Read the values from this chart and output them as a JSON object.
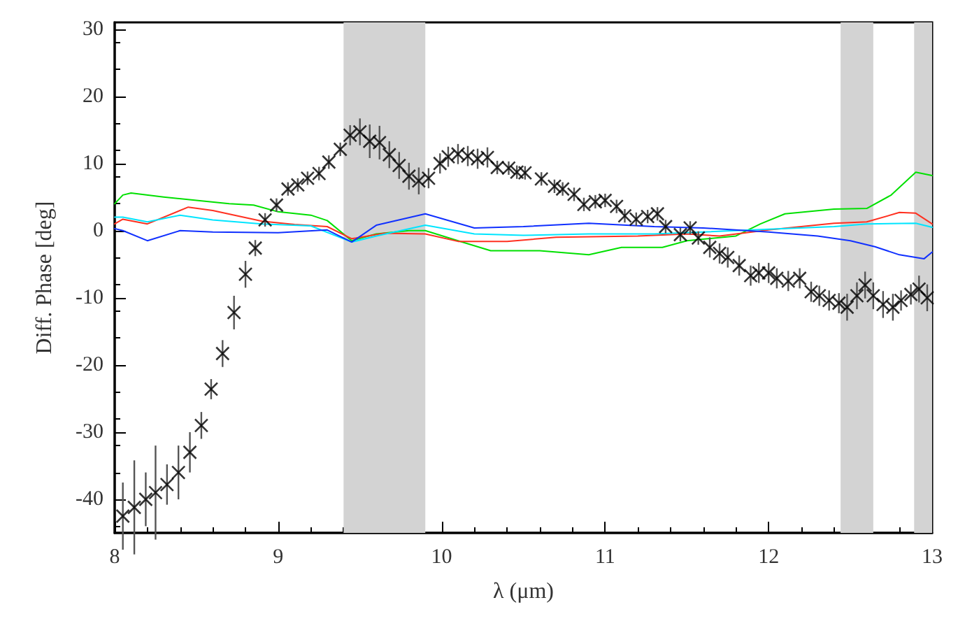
{
  "chart_data": {
    "type": "scatter",
    "xlabel": "λ (μm)",
    "ylabel": "Diff. Phase [deg]",
    "xlim": [
      8,
      13
    ],
    "ylim": [
      -45,
      31
    ],
    "xticks": [
      8,
      9,
      10,
      11,
      12,
      13
    ],
    "yticks": [
      -40,
      -30,
      -20,
      -10,
      0,
      10,
      20,
      30
    ],
    "grid": false,
    "bands": [
      {
        "axis": "x",
        "from": 9.4,
        "to": 9.9,
        "color": "#d3d3d3"
      },
      {
        "axis": "x",
        "from": 12.44,
        "to": 12.64,
        "color": "#d3d3d3"
      },
      {
        "axis": "x",
        "from": 12.89,
        "to": 13,
        "color": "#d3d3d3"
      }
    ],
    "series": [
      {
        "type": "line",
        "color": "#00e000",
        "marker": "none",
        "line_style": "solid",
        "x": [
          8.0,
          8.05,
          8.1,
          8.3,
          8.5,
          8.7,
          8.85,
          9.0,
          9.2,
          9.3,
          9.45,
          9.6,
          9.8,
          9.9,
          10.1,
          10.3,
          10.6,
          10.9,
          11.1,
          11.35,
          11.5,
          11.8,
          11.95,
          12.1,
          12.4,
          12.6,
          12.75,
          12.9,
          13.0
        ],
        "values": [
          4,
          5.3,
          5.6,
          5.0,
          4.5,
          4.0,
          3.8,
          2.8,
          2.3,
          1.5,
          -1.5,
          -0.5,
          0,
          0,
          -1.5,
          -3,
          -3,
          -3.6,
          -2.5,
          -2.5,
          -1.5,
          -0.8,
          1,
          2.5,
          3.2,
          3.3,
          5.3,
          8.7,
          8.2
        ]
      },
      {
        "type": "line",
        "color": "#ff3020",
        "marker": "none",
        "line_style": "solid",
        "x": [
          8.0,
          8.05,
          8.2,
          8.45,
          8.6,
          8.9,
          9.1,
          9.3,
          9.45,
          9.65,
          9.9,
          10.1,
          10.4,
          10.7,
          11.2,
          11.5,
          11.7,
          12.0,
          12.4,
          12.6,
          12.8,
          12.9,
          13.0
        ],
        "values": [
          1,
          1.7,
          1,
          3.5,
          3,
          1.4,
          0.9,
          0.6,
          -1.2,
          -0.4,
          -0.5,
          -1.6,
          -1.6,
          -1,
          -0.8,
          -0.5,
          -0.8,
          0.1,
          1.1,
          1.3,
          2.7,
          2.6,
          1
        ]
      },
      {
        "type": "line",
        "color": "#00e5ff",
        "marker": "none",
        "line_style": "solid",
        "x": [
          8.0,
          8.05,
          8.2,
          8.4,
          8.6,
          8.9,
          9.2,
          9.45,
          9.6,
          9.9,
          10.2,
          10.5,
          10.9,
          11.3,
          11.6,
          12.0,
          12.4,
          12.6,
          12.9,
          13.0
        ],
        "values": [
          2,
          2,
          1.3,
          2.3,
          1.6,
          1,
          0.7,
          -1.7,
          -0.8,
          0.8,
          -0.5,
          -0.7,
          -0.5,
          -0.5,
          -0.2,
          0.2,
          0.6,
          1,
          1.1,
          0.5
        ]
      },
      {
        "type": "line",
        "color": "#1030ff",
        "marker": "none",
        "line_style": "solid",
        "x": [
          8.0,
          8.05,
          8.2,
          8.4,
          8.6,
          9.0,
          9.3,
          9.45,
          9.6,
          9.9,
          10.2,
          10.5,
          10.9,
          11.3,
          11.6,
          12.0,
          12.3,
          12.5,
          12.65,
          12.8,
          12.95,
          13.0
        ],
        "values": [
          0.3,
          0,
          -1.5,
          0,
          -0.2,
          -0.3,
          0.1,
          -1.7,
          0.8,
          2.5,
          0.4,
          0.6,
          1.1,
          0.6,
          0.4,
          -0.2,
          -0.8,
          -1.5,
          -2.4,
          -3.6,
          -4.2,
          -3.2
        ]
      },
      {
        "color": "#000000",
        "marker": "cross",
        "x": [
          8.05,
          8.12,
          8.19,
          8.25,
          8.32,
          8.39,
          8.46,
          8.53,
          8.59,
          8.66,
          8.73,
          8.8,
          8.86,
          8.92,
          8.99,
          9.06,
          9.12,
          9.18,
          9.25,
          9.31,
          9.38,
          9.44,
          9.5,
          9.56,
          9.62,
          9.68,
          9.74,
          9.8,
          9.86,
          9.92,
          9.99,
          10.04,
          10.1,
          10.16,
          10.22,
          10.28,
          10.34,
          10.41,
          10.46,
          10.51,
          10.61,
          10.69,
          10.74,
          10.81,
          10.87,
          10.94,
          11.0,
          11.07,
          11.12,
          11.19,
          11.26,
          11.32,
          11.37,
          11.46,
          11.52,
          11.57,
          11.64,
          11.7,
          11.75,
          11.82,
          11.89,
          11.94,
          12.0,
          12.05,
          12.12,
          12.19,
          12.26,
          12.31,
          12.37,
          12.43,
          12.48,
          12.54,
          12.59,
          12.64,
          12.7,
          12.76,
          12.81,
          12.87,
          12.92,
          12.97
        ],
        "values": [
          -42.5,
          -41.2,
          -40,
          -39,
          -37.8,
          -36,
          -33,
          -29,
          -23.6,
          -18.3,
          -12.2,
          -6.5,
          -2.6,
          1.6,
          3.8,
          6.2,
          6.8,
          7.8,
          8.5,
          10.2,
          12.1,
          14.2,
          14.7,
          13.3,
          13.1,
          11.3,
          9.7,
          8.1,
          7.4,
          7.8,
          10,
          11,
          11.4,
          11.1,
          10.7,
          10.9,
          9.4,
          9.3,
          8.7,
          8.6,
          7.7,
          6.6,
          6.2,
          5.4,
          3.9,
          4.3,
          4.5,
          3.6,
          2.2,
          1.7,
          2.1,
          2.5,
          0.6,
          -0.6,
          0.4,
          -1.1,
          -2.5,
          -3.4,
          -4,
          -5.2,
          -6.7,
          -6.3,
          -6.3,
          -7.1,
          -7.5,
          -7.1,
          -9.1,
          -9.7,
          -10.4,
          -10.8,
          -11.4,
          -9.7,
          -8.1,
          -9.7,
          -11,
          -11.4,
          -10.4,
          -9.5,
          -8.7,
          -10
        ],
        "errors": [
          5,
          7,
          4,
          7,
          3,
          4,
          3,
          2,
          1.5,
          2,
          2.5,
          2,
          1.2,
          1,
          1,
          1,
          1,
          1,
          1,
          1,
          1,
          1.5,
          2,
          2.5,
          2.5,
          2,
          2,
          2,
          2,
          1.5,
          1.5,
          1.5,
          1.5,
          1.5,
          1.5,
          1.5,
          1,
          1,
          1,
          1,
          1,
          1,
          1,
          1,
          1,
          1,
          1,
          1,
          1,
          1,
          1,
          1,
          1,
          1,
          1,
          1,
          1.5,
          1.5,
          1.5,
          1.5,
          1.5,
          1.5,
          1.5,
          1.5,
          1.5,
          1.5,
          1.5,
          1.5,
          1.5,
          1.5,
          2,
          2,
          2,
          2,
          2,
          2,
          1.5,
          1.5,
          2,
          2
        ]
      }
    ]
  }
}
